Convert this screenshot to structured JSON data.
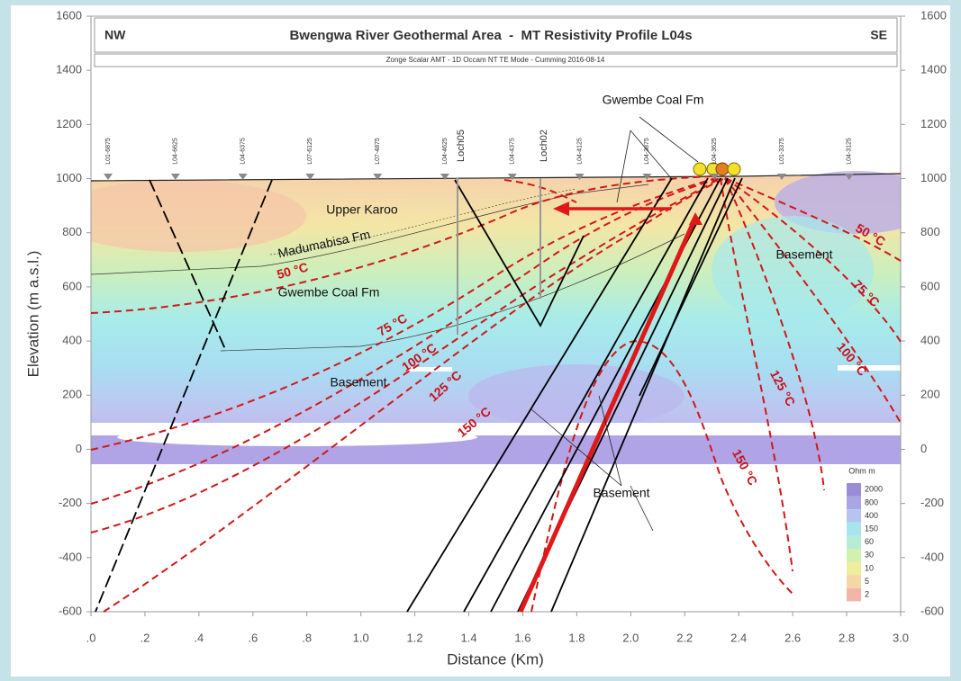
{
  "chart_data": {
    "type": "profile",
    "title": "Bwengwa River Geothermal Area  -  MT Resistivity Profile L04s",
    "left_label": "NW",
    "right_label": "SE",
    "subtitle": "Zonge Scalar AMT - 1D Occam NT TE Mode - Cumming 2016-08-14",
    "xlabel": "Distance (Km)",
    "ylabel": "Elevation (m a.s.l.)",
    "xlim": [
      0,
      3
    ],
    "ylim": [
      -600,
      1600
    ],
    "y2lim": [
      -600,
      1600
    ],
    "xticks": [
      {
        "value": 0,
        "label": ".0"
      },
      {
        "value": 0.2,
        "label": ".2"
      },
      {
        "value": 0.4,
        "label": ".4"
      },
      {
        "value": 0.6,
        "label": ".6"
      },
      {
        "value": 0.8,
        "label": ".8"
      },
      {
        "value": 1,
        "label": "1.0"
      },
      1.2,
      1.4,
      1.6,
      1.8,
      {
        "value": 2,
        "label": "2.0"
      },
      2.2,
      2.4,
      2.6,
      2.8,
      {
        "value": 3,
        "label": "3.0"
      }
    ],
    "yticks": [
      -600,
      -400,
      -200,
      0,
      200,
      400,
      600,
      800,
      1000,
      1200,
      1400,
      1600
    ],
    "y2ticks": [
      -600,
      -400,
      -200,
      0,
      200,
      400,
      600,
      800,
      1000,
      1200,
      1400,
      1600
    ],
    "stations": [
      "L01-6875",
      "L04-6625",
      "L04-6375",
      "L07-6125",
      "L07-4875",
      "L04-4625",
      "L04-4375",
      "L04-4125",
      "L04-3875",
      "L04-3625",
      "L01-3375",
      "L04-3125"
    ],
    "wells": [
      "Loch05",
      "Loch02"
    ],
    "formations": [
      "Upper Karoo",
      "Madumabisa Fm",
      "Gwembe Coal Fm",
      "Gwembe Coal Fm",
      "Basement",
      "Basement",
      "Basement"
    ],
    "isotherms": [
      "50 °C",
      "75 °C",
      "100 °C",
      "125 °C",
      "150 °C",
      "50 °C",
      "75 °C",
      "100 °C",
      "125 °C",
      "150 °C"
    ],
    "legend": {
      "title": "Ohm m",
      "levels": [
        2000,
        800,
        400,
        150,
        60,
        30,
        10,
        5,
        2
      ],
      "colors": [
        "#9a8cd6",
        "#aaa6e6",
        "#b6c4f0",
        "#a6e4ee",
        "#b6ecd8",
        "#d2f0ae",
        "#eeee9e",
        "#f5d6a6",
        "#f2b6a8"
      ]
    }
  }
}
